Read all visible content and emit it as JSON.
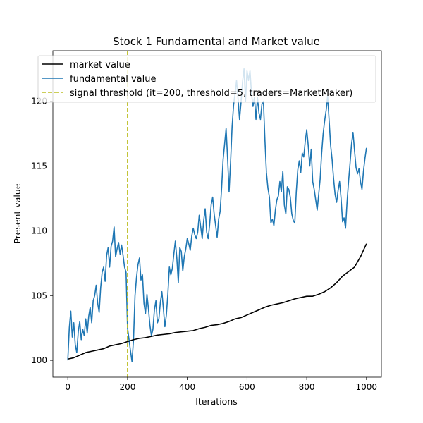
{
  "chart_data": {
    "type": "line",
    "title": "Stock 1 Fundamental and Market value",
    "xlabel": "Iterations",
    "ylabel": "Present value",
    "xlim": [
      -50,
      1050
    ],
    "ylim": [
      98.7,
      123.9
    ],
    "xticks": [
      0,
      200,
      400,
      600,
      800,
      1000
    ],
    "yticks": [
      100,
      105,
      110,
      115,
      120
    ],
    "legend_position": "top-left",
    "grid": false,
    "series": [
      {
        "name": "market value",
        "color": "#000000",
        "style": "solid",
        "x": [
          0,
          20,
          40,
          60,
          80,
          100,
          120,
          140,
          160,
          180,
          200,
          220,
          240,
          260,
          280,
          300,
          320,
          340,
          360,
          380,
          400,
          420,
          440,
          460,
          480,
          500,
          520,
          540,
          560,
          580,
          600,
          620,
          640,
          660,
          680,
          700,
          720,
          740,
          760,
          780,
          800,
          820,
          840,
          860,
          880,
          900,
          920,
          940,
          960,
          980,
          990,
          1000
        ],
        "y": [
          100.1,
          100.2,
          100.4,
          100.6,
          100.7,
          100.8,
          100.9,
          101.1,
          101.2,
          101.3,
          101.45,
          101.6,
          101.7,
          101.75,
          101.85,
          101.95,
          102.0,
          102.05,
          102.15,
          102.2,
          102.25,
          102.3,
          102.45,
          102.55,
          102.7,
          102.75,
          102.85,
          103.0,
          103.2,
          103.3,
          103.5,
          103.7,
          103.9,
          104.1,
          104.25,
          104.35,
          104.45,
          104.6,
          104.75,
          104.85,
          104.95,
          104.95,
          105.1,
          105.3,
          105.6,
          106.0,
          106.5,
          106.85,
          107.2,
          108.0,
          108.5,
          109.0
        ]
      },
      {
        "name": "fundamental value",
        "color": "#1f77b4",
        "style": "solid",
        "x": [
          0,
          5,
          10,
          15,
          20,
          25,
          30,
          35,
          40,
          45,
          50,
          55,
          60,
          65,
          70,
          75,
          80,
          85,
          90,
          95,
          100,
          105,
          110,
          115,
          120,
          125,
          130,
          135,
          140,
          145,
          150,
          155,
          160,
          165,
          170,
          175,
          180,
          185,
          190,
          195,
          200,
          205,
          210,
          215,
          220,
          225,
          230,
          235,
          240,
          245,
          250,
          255,
          260,
          265,
          270,
          275,
          280,
          285,
          290,
          295,
          300,
          305,
          310,
          315,
          320,
          325,
          330,
          335,
          340,
          345,
          350,
          355,
          360,
          365,
          370,
          375,
          380,
          385,
          390,
          395,
          400,
          405,
          410,
          415,
          420,
          425,
          430,
          435,
          440,
          445,
          450,
          455,
          460,
          465,
          470,
          475,
          480,
          485,
          490,
          495,
          500,
          505,
          510,
          515,
          520,
          525,
          530,
          535,
          540,
          545,
          550,
          555,
          560,
          565,
          570,
          575,
          580,
          585,
          590,
          595,
          600,
          605,
          610,
          615,
          620,
          625,
          630,
          635,
          640,
          645,
          650,
          655,
          660,
          665,
          670,
          675,
          680,
          685,
          690,
          695,
          700,
          705,
          710,
          715,
          720,
          725,
          730,
          735,
          740,
          745,
          750,
          755,
          760,
          765,
          770,
          775,
          780,
          785,
          790,
          795,
          800,
          805,
          810,
          815,
          820,
          825,
          830,
          835,
          840,
          845,
          850,
          855,
          860,
          865,
          870,
          875,
          880,
          885,
          890,
          895,
          900,
          905,
          910,
          915,
          920,
          925,
          930,
          935,
          940,
          945,
          950,
          955,
          960,
          965,
          970,
          975,
          980,
          985,
          990,
          995,
          1000
        ],
        "y": [
          100.0,
          102.5,
          103.8,
          101.8,
          102.9,
          101.2,
          100.6,
          102.2,
          103.0,
          101.6,
          102.4,
          101.9,
          103.2,
          102.1,
          103.4,
          104.1,
          102.9,
          104.6,
          105.0,
          105.8,
          104.4,
          103.7,
          105.6,
          106.8,
          107.2,
          106.1,
          108.1,
          108.7,
          107.2,
          108.8,
          109.2,
          110.3,
          108.0,
          108.6,
          109.1,
          108.2,
          108.9,
          108.1,
          107.2,
          106.8,
          102.5,
          101.6,
          100.7,
          99.9,
          101.6,
          105.0,
          106.4,
          107.4,
          107.9,
          106.2,
          106.6,
          104.4,
          103.6,
          105.1,
          104.0,
          102.7,
          101.9,
          102.4,
          103.9,
          104.6,
          102.9,
          103.2,
          104.5,
          105.3,
          104.0,
          102.6,
          103.5,
          105.1,
          107.2,
          106.6,
          107.1,
          108.2,
          109.2,
          107.9,
          106.0,
          108.7,
          108.4,
          106.9,
          108.0,
          108.6,
          109.4,
          109.0,
          108.5,
          109.6,
          110.2,
          109.7,
          109.4,
          109.9,
          111.2,
          110.3,
          109.4,
          110.8,
          111.7,
          109.9,
          109.4,
          110.5,
          112.0,
          112.6,
          111.3,
          110.4,
          109.5,
          110.9,
          111.5,
          113.3,
          115.5,
          116.7,
          117.9,
          115.6,
          113.0,
          115.3,
          118.0,
          119.7,
          120.6,
          121.6,
          120.2,
          118.6,
          119.9,
          121.5,
          122.5,
          120.0,
          122.4,
          121.6,
          122.4,
          120.6,
          119.6,
          120.3,
          118.6,
          120.3,
          119.1,
          118.6,
          119.8,
          120.0,
          117.0,
          114.5,
          113.3,
          112.6,
          110.6,
          110.9,
          110.4,
          111.6,
          112.4,
          112.7,
          113.8,
          113.0,
          114.6,
          112.0,
          111.3,
          113.4,
          113.2,
          112.6,
          111.3,
          110.8,
          110.6,
          113.0,
          114.7,
          115.4,
          114.5,
          116.0,
          115.7,
          116.9,
          117.8,
          116.6,
          115.0,
          116.3,
          113.8,
          113.2,
          112.4,
          111.6,
          112.8,
          114.0,
          116.0,
          117.5,
          118.5,
          119.3,
          120.4,
          118.5,
          116.6,
          115.5,
          114.0,
          112.8,
          112.2,
          113.1,
          113.8,
          112.5,
          110.7,
          111.0,
          110.2,
          112.2,
          113.8,
          115.2,
          116.7,
          117.6,
          116.2,
          114.9,
          114.4,
          114.8,
          113.8,
          113.2,
          114.6,
          115.6,
          116.4
        ]
      },
      {
        "name": "signal threshold (it=200, threshold=5, traders=MarketMaker)",
        "color": "#bcbd22",
        "style": "dashed",
        "vertical_line_x": 200
      }
    ]
  }
}
